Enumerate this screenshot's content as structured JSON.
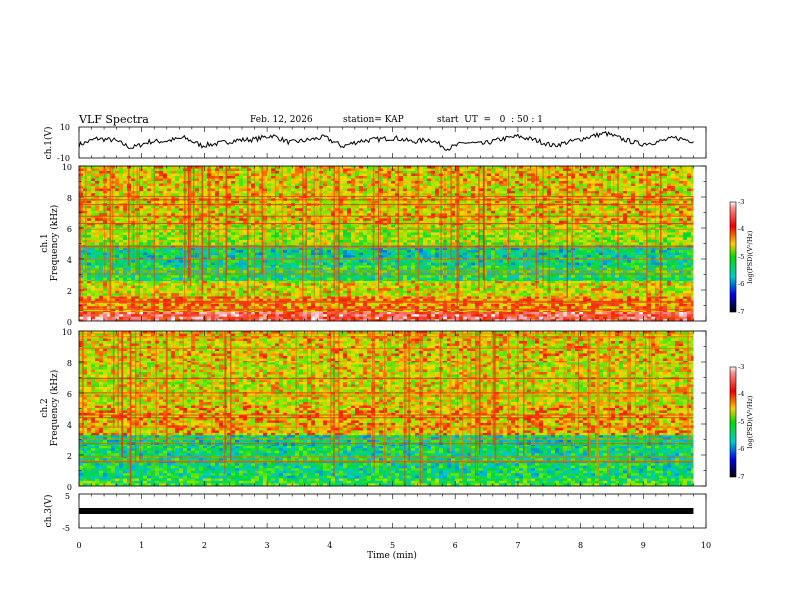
{
  "header": {
    "title": "VLF Spectra",
    "date": "Feb. 12, 2026",
    "station": "station= KAP",
    "start": "start  UT  =   0  : 50 : 1"
  },
  "panels": {
    "ch1": {
      "ylabel": "ch.1(V)",
      "ticks": [
        "10",
        "-10"
      ]
    },
    "spec1": {
      "ylabel_top": "ch.1",
      "ylabel": "Frequency  (kHz)",
      "ticks": [
        "10",
        "8",
        "6",
        "4",
        "2",
        "0"
      ]
    },
    "spec2": {
      "ylabel_top": "ch.2",
      "ylabel": "Frequency  (kHz)",
      "ticks": [
        "10",
        "8",
        "6",
        "4",
        "2",
        "0"
      ]
    },
    "ch3": {
      "ylabel": "ch.3(V)",
      "ticks": [
        "5",
        "-5"
      ]
    }
  },
  "colorbar": {
    "ticks": [
      "-3",
      "-4",
      "-5",
      "-6",
      "-7"
    ],
    "label": "log(PSD)(V²/Hz)"
  },
  "xaxis": {
    "label": "Time  (min)",
    "ticks": [
      "0",
      "1",
      "2",
      "3",
      "4",
      "5",
      "6",
      "7",
      "8",
      "9",
      "10"
    ]
  },
  "chart_data": [
    {
      "type": "line",
      "title": "VLF Spectra",
      "ylabel": "ch.1(V)",
      "xlabel": "Time (min)",
      "xlim": [
        0,
        10
      ],
      "ylim": [
        -10,
        10
      ],
      "x_data_end": 9.8,
      "series": [
        {
          "values": [
            -1.5,
            2.5,
            1.5,
            -3.5,
            0.5,
            1.0,
            3.0,
            -2.0,
            -0.5,
            1.5,
            2.0,
            4.5,
            0.0,
            1.5,
            3.5,
            -2.5,
            1.0,
            2.0,
            3.0,
            0.5,
            2.0,
            -4.0,
            0.0,
            -1.0,
            2.0,
            4.0,
            1.5,
            -2.0,
            0.5,
            3.5,
            6.0,
            2.0,
            -1.0,
            0.5,
            3.0,
            1.0
          ]
        }
      ]
    },
    {
      "type": "heatmap",
      "title": "ch.1",
      "ylabel": "Frequency (kHz)",
      "xlabel": "Time (min)",
      "xlim": [
        0,
        10
      ],
      "ylim": [
        0,
        10
      ],
      "x_data_end": 9.8,
      "value_range": [
        -7,
        -3
      ],
      "colorbar_label": "log(PSD)(V²/Hz)",
      "bands": [
        {
          "f": [
            0.0,
            0.6
          ],
          "psd": -3.6
        },
        {
          "f": [
            0.6,
            1.6
          ],
          "psd": -4.3
        },
        {
          "f": [
            1.6,
            2.6
          ],
          "psd": -4.7
        },
        {
          "f": [
            2.6,
            3.6
          ],
          "psd": -5.5
        },
        {
          "f": [
            3.6,
            4.9
          ],
          "psd": -5.7
        },
        {
          "f": [
            4.9,
            6.2
          ],
          "psd": -4.9
        },
        {
          "f": [
            6.2,
            8.4
          ],
          "psd": -4.6
        },
        {
          "f": [
            8.4,
            10.0
          ],
          "psd": -4.6
        }
      ]
    },
    {
      "type": "heatmap",
      "title": "ch.2",
      "ylabel": "Frequency (kHz)",
      "xlabel": "Time (min)",
      "xlim": [
        0,
        10
      ],
      "ylim": [
        0,
        10
      ],
      "x_data_end": 9.8,
      "value_range": [
        -7,
        -3
      ],
      "colorbar_label": "log(PSD)(V²/Hz)",
      "bands": [
        {
          "f": [
            0.0,
            0.5
          ],
          "psd": -5.3
        },
        {
          "f": [
            0.5,
            2.6
          ],
          "psd": -5.6
        },
        {
          "f": [
            2.6,
            3.3
          ],
          "psd": -5.7
        },
        {
          "f": [
            3.3,
            5.2
          ],
          "psd": -4.5
        },
        {
          "f": [
            5.2,
            8.0
          ],
          "psd": -4.7
        },
        {
          "f": [
            8.0,
            10.0
          ],
          "psd": -4.6
        }
      ]
    },
    {
      "type": "line",
      "title": "",
      "ylabel": "ch.3(V)",
      "xlabel": "Time (min)",
      "xlim": [
        0,
        10
      ],
      "ylim": [
        -5,
        5
      ],
      "x_data_end": 9.8,
      "series": [
        {
          "values": [
            0,
            0
          ]
        }
      ]
    }
  ]
}
